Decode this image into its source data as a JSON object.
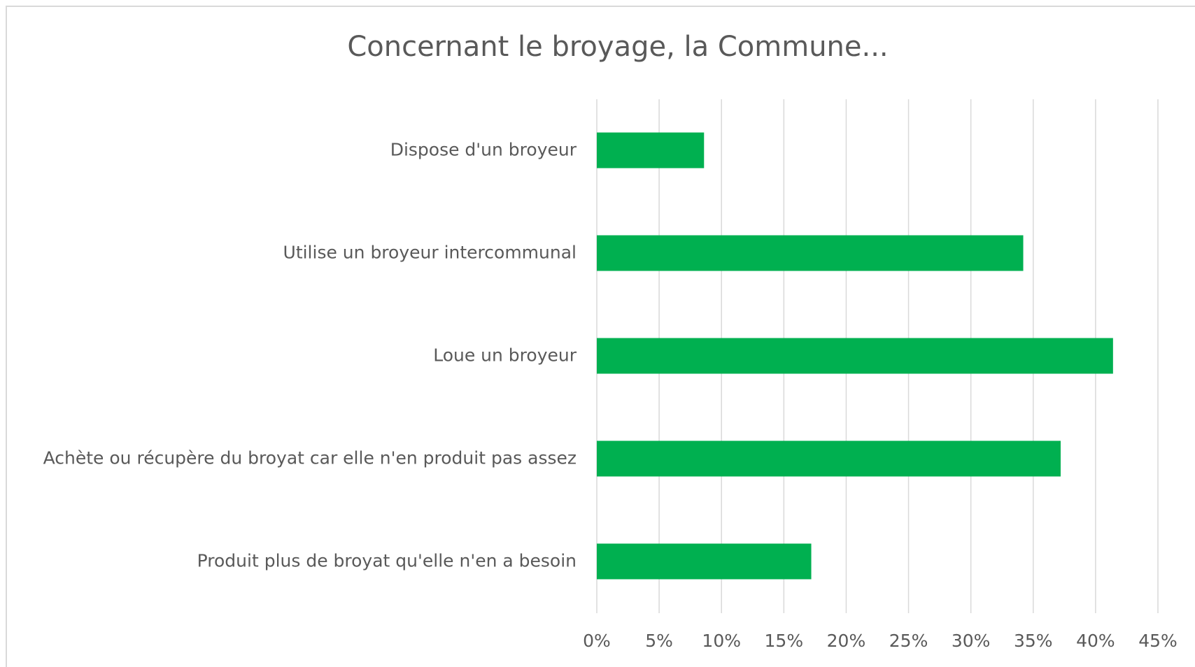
{
  "chart_data": {
    "type": "bar",
    "orientation": "horizontal",
    "title": "Concernant  le broyage, la Commune...",
    "categories": [
      "Dispose d'un broyeur",
      "Utilise un broyeur intercommunal",
      "Loue un broyeur",
      "Achète ou récupère du broyat car elle n'en produit pas assez",
      "Produit plus de broyat qu'elle n'en a besoin"
    ],
    "values": [
      8.6,
      34.2,
      41.4,
      37.2,
      17.2
    ],
    "color": "#00b050",
    "xlim": [
      0,
      45
    ],
    "xticks": [
      {
        "value": 0,
        "label": "0%"
      },
      {
        "value": 5,
        "label": "5%"
      },
      {
        "value": 10,
        "label": "10%"
      },
      {
        "value": 15,
        "label": "15%"
      },
      {
        "value": 20,
        "label": "20%"
      },
      {
        "value": 25,
        "label": "25%"
      },
      {
        "value": 30,
        "label": "30%"
      },
      {
        "value": 35,
        "label": "35%"
      },
      {
        "value": 40,
        "label": "40%"
      },
      {
        "value": 45,
        "label": "45%"
      }
    ],
    "grid": true
  }
}
